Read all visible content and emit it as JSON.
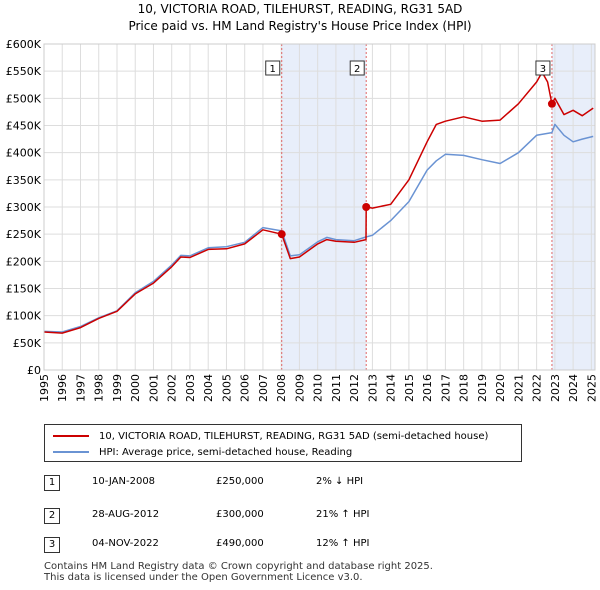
{
  "title_line1": "10, VICTORIA ROAD, TILEHURST, READING, RG31 5AD",
  "title_line2": "Price paid vs. HM Land Registry's House Price Index (HPI)",
  "colors": {
    "property": "#cc0000",
    "hpi": "#6a93d3",
    "shade": "#e8eefa",
    "marker_line": "#e06666"
  },
  "chart_data": {
    "type": "line",
    "ylim": [
      0,
      600000
    ],
    "xlim": [
      1995,
      2025.2
    ],
    "y_ticks": [
      0,
      50000,
      100000,
      150000,
      200000,
      250000,
      300000,
      350000,
      400000,
      450000,
      500000,
      550000,
      600000
    ],
    "y_tick_labels": [
      "£0",
      "£50K",
      "£100K",
      "£150K",
      "£200K",
      "£250K",
      "£300K",
      "£350K",
      "£400K",
      "£450K",
      "£500K",
      "£550K",
      "£600K"
    ],
    "x_ticks": [
      1995,
      1996,
      1997,
      1998,
      1999,
      2000,
      2001,
      2002,
      2003,
      2004,
      2005,
      2006,
      2007,
      2008,
      2009,
      2010,
      2011,
      2012,
      2013,
      2014,
      2015,
      2016,
      2017,
      2018,
      2019,
      2020,
      2021,
      2022,
      2023,
      2024,
      2025
    ],
    "x_tick_labels": [
      "1995",
      "1996",
      "1997",
      "1998",
      "1999",
      "2000",
      "2001",
      "2002",
      "2003",
      "2004",
      "2005",
      "2006",
      "2007",
      "2008",
      "2009",
      "2010",
      "2011",
      "2012",
      "2013",
      "2014",
      "2015",
      "2016",
      "2017",
      "2018",
      "2019",
      "2020",
      "2021",
      "2022",
      "2023",
      "2024",
      "2025"
    ],
    "shaded_ranges": [
      [
        2008.03,
        2012.66
      ],
      [
        2022.84,
        2025.2
      ]
    ],
    "series": [
      {
        "name": "10, VICTORIA ROAD, TILEHURST, READING, RG31 5AD (semi-detached house)",
        "x": [
          1995.0,
          1996.0,
          1997.0,
          1998.0,
          1999.0,
          2000.0,
          2001.0,
          2002.0,
          2002.5,
          2003.0,
          2004.0,
          2005.0,
          2006.0,
          2007.0,
          2008.03,
          2008.5,
          2009.0,
          2010.0,
          2010.5,
          2011.0,
          2012.0,
          2012.65,
          2012.66,
          2013.0,
          2014.0,
          2015.0,
          2016.0,
          2016.5,
          2017.0,
          2018.0,
          2019.0,
          2020.0,
          2021.0,
          2022.0,
          2022.3,
          2022.6,
          2022.84,
          2023.0,
          2023.5,
          2024.0,
          2024.5,
          2025.1
        ],
        "values": [
          70000,
          68000,
          78000,
          95000,
          108000,
          140000,
          160000,
          190000,
          208000,
          207000,
          222000,
          223000,
          232000,
          258000,
          250000,
          205000,
          208000,
          232000,
          240000,
          237000,
          235000,
          240000,
          300000,
          298000,
          305000,
          350000,
          420000,
          452000,
          458000,
          466000,
          458000,
          460000,
          490000,
          530000,
          548000,
          530000,
          490000,
          500000,
          470000,
          478000,
          468000,
          482000
        ]
      },
      {
        "name": "HPI: Average price, semi-detached house, Reading",
        "x": [
          1995.0,
          1996.0,
          1997.0,
          1998.0,
          1999.0,
          2000.0,
          2001.0,
          2002.0,
          2002.5,
          2003.0,
          2004.0,
          2005.0,
          2006.0,
          2007.0,
          2008.03,
          2008.5,
          2009.0,
          2010.0,
          2010.5,
          2011.0,
          2012.0,
          2012.66,
          2013.0,
          2014.0,
          2015.0,
          2016.0,
          2016.5,
          2017.0,
          2018.0,
          2019.0,
          2020.0,
          2021.0,
          2022.0,
          2022.84,
          2023.0,
          2023.5,
          2024.0,
          2024.5,
          2025.1
        ],
        "values": [
          71000,
          70000,
          80000,
          96000,
          109000,
          142000,
          163000,
          193000,
          211000,
          210000,
          225000,
          227000,
          235000,
          262000,
          256000,
          210000,
          212000,
          236000,
          244000,
          240000,
          238000,
          245000,
          248000,
          275000,
          310000,
          368000,
          385000,
          397000,
          395000,
          387000,
          380000,
          400000,
          432000,
          437000,
          452000,
          432000,
          420000,
          425000,
          430000
        ]
      }
    ],
    "sales": [
      {
        "label": "1",
        "x": 2008.03,
        "value": 250000
      },
      {
        "label": "2",
        "x": 2012.66,
        "value": 300000
      },
      {
        "label": "3",
        "x": 2022.84,
        "value": 490000
      }
    ]
  },
  "legend": {
    "property_label": "10, VICTORIA ROAD, TILEHURST, READING, RG31 5AD (semi-detached house)",
    "hpi_label": "HPI: Average price, semi-detached house, Reading"
  },
  "transactions": [
    {
      "num": "1",
      "date": "10-JAN-2008",
      "price": "£250,000",
      "hpi": "2% ↓ HPI"
    },
    {
      "num": "2",
      "date": "28-AUG-2012",
      "price": "£300,000",
      "hpi": "21% ↑ HPI"
    },
    {
      "num": "3",
      "date": "04-NOV-2022",
      "price": "£490,000",
      "hpi": "12% ↑ HPI"
    }
  ],
  "footer_line1": "Contains HM Land Registry data © Crown copyright and database right 2025.",
  "footer_line2": "This data is licensed under the Open Government Licence v3.0."
}
